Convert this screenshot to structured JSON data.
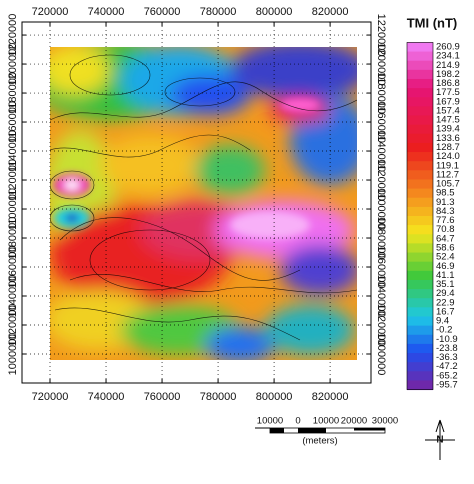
{
  "map": {
    "xticks": [
      720000,
      740000,
      760000,
      780000,
      800000,
      820000
    ],
    "yticks": [
      1000000,
      1020000,
      1040000,
      1060000,
      1080000,
      1100000,
      1120000,
      1140000,
      1160000,
      1180000,
      1200000,
      1220000
    ],
    "xlim": [
      710000,
      834600
    ],
    "ylim": [
      980000,
      1229000
    ]
  },
  "legend": {
    "title": "TMI (nT)",
    "labels": [
      "260.9",
      "234.1",
      "214.9",
      "198.2",
      "186.8",
      "177.5",
      "167.9",
      "157.4",
      "147.5",
      "139.4",
      "133.6",
      "128.7",
      "124.0",
      "119.1",
      "112.7",
      "105.7",
      "98.5",
      "91.3",
      "84.3",
      "77.6",
      "70.8",
      "64.7",
      "58.6",
      "52.4",
      "46.9",
      "41.1",
      "35.1",
      "29.4",
      "22.9",
      "16.7",
      "9.4",
      "-0.2",
      "-10.9",
      "-23.8",
      "-36.3",
      "-47.2",
      "-65.2",
      "-95.7"
    ]
  },
  "scalebar": {
    "labels": [
      "10000",
      "0",
      "10000",
      "20000",
      "30000"
    ],
    "unit": "(meters)"
  },
  "north": "N"
}
